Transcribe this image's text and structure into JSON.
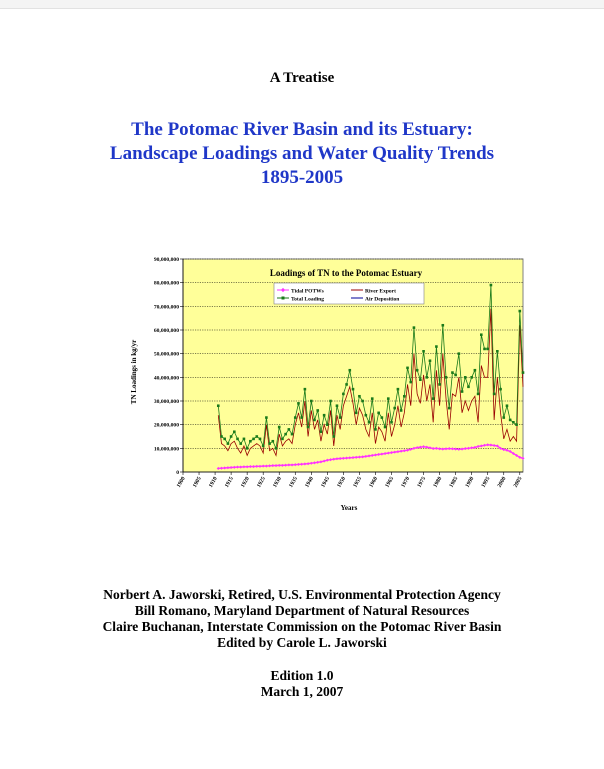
{
  "document": {
    "kicker": "A Treatise",
    "title_lines": [
      "The Potomac River Basin and its Estuary:",
      "Landscape Loadings and Water Quality Trends",
      "1895-2005"
    ],
    "author_lines": [
      "Norbert A. Jaworski, Retired, U.S. Environmental Protection Agency",
      "Bill Romano, Maryland Department of Natural Resources",
      "Claire Buchanan, Interstate Commission on the Potomac River Basin",
      "Edited by Carole L. Jaworski"
    ],
    "edition_lines": [
      "Edition 1.0",
      "March 1, 2007"
    ]
  },
  "chart_data": {
    "type": "line",
    "title": "Loadings of TN to the Potomac Estuary",
    "xlabel": "Years",
    "ylabel": "TN Loadings in kg/yr",
    "xlim": [
      1900,
      2006
    ],
    "ylim": [
      0,
      90000000
    ],
    "x_ticks": [
      1900,
      1905,
      1910,
      1915,
      1920,
      1925,
      1930,
      1935,
      1940,
      1945,
      1950,
      1955,
      1960,
      1965,
      1970,
      1975,
      1980,
      1985,
      1990,
      1995,
      2000,
      2005
    ],
    "y_ticks": [
      0,
      10000000,
      20000000,
      30000000,
      40000000,
      50000000,
      60000000,
      70000000,
      80000000,
      90000000
    ],
    "y_tick_labels": [
      "0",
      "10,000,000",
      "20,000,000",
      "30,000,000",
      "40,000,000",
      "50,000,000",
      "60,000,000",
      "70,000,000",
      "80,000,000",
      "90,000,000"
    ],
    "grid": true,
    "legend_position": "top",
    "plot_background": "#ffff99",
    "years": [
      1911,
      1912,
      1913,
      1914,
      1915,
      1916,
      1917,
      1918,
      1919,
      1920,
      1921,
      1922,
      1923,
      1924,
      1925,
      1926,
      1927,
      1928,
      1929,
      1930,
      1931,
      1932,
      1933,
      1934,
      1935,
      1936,
      1937,
      1938,
      1939,
      1940,
      1941,
      1942,
      1943,
      1944,
      1945,
      1946,
      1947,
      1948,
      1949,
      1950,
      1951,
      1952,
      1953,
      1954,
      1955,
      1956,
      1957,
      1958,
      1959,
      1960,
      1961,
      1962,
      1963,
      1964,
      1965,
      1966,
      1967,
      1968,
      1969,
      1970,
      1971,
      1972,
      1973,
      1974,
      1975,
      1976,
      1977,
      1978,
      1979,
      1980,
      1981,
      1982,
      1983,
      1984,
      1985,
      1986,
      1987,
      1988,
      1989,
      1990,
      1991,
      1992,
      1993,
      1994,
      1995,
      1996,
      1997,
      1998,
      1999,
      2000,
      2001,
      2002,
      2003,
      2004,
      2005,
      2006
    ],
    "series": [
      {
        "name": "Tidal POTWs",
        "color": "#ff33ff",
        "marker": "diamond",
        "values": [
          1500000,
          1600000,
          1700000,
          1800000,
          1900000,
          2000000,
          2100000,
          2100000,
          2200000,
          2200000,
          2300000,
          2300000,
          2400000,
          2400000,
          2500000,
          2500000,
          2600000,
          2700000,
          2700000,
          2800000,
          2800000,
          2900000,
          3000000,
          3000000,
          3100000,
          3200000,
          3300000,
          3400000,
          3500000,
          3700000,
          3900000,
          4100000,
          4300000,
          4600000,
          5000000,
          5200000,
          5400000,
          5600000,
          5700000,
          5800000,
          5900000,
          6000000,
          6100000,
          6200000,
          6300000,
          6400000,
          6600000,
          6800000,
          7000000,
          7200000,
          7400000,
          7600000,
          7800000,
          8000000,
          8200000,
          8400000,
          8600000,
          8800000,
          9000000,
          9200000,
          9600000,
          10000000,
          10300000,
          10500000,
          10700000,
          10500000,
          10200000,
          9900000,
          10000000,
          9800000,
          9700000,
          9800000,
          9900000,
          9800000,
          9700000,
          9600000,
          9700000,
          9900000,
          10000000,
          10200000,
          10400000,
          10800000,
          11000000,
          11300000,
          11500000,
          11400000,
          11200000,
          11000000,
          10000000,
          9500000,
          9200000,
          8700000,
          7800000,
          7000000,
          6200000,
          5800000
        ]
      },
      {
        "name": "River Export",
        "color": "#990000",
        "marker": "none",
        "values": [
          24000000,
          12000000,
          11000000,
          9000000,
          12000000,
          13000000,
          10000000,
          8000000,
          11000000,
          7000000,
          10000000,
          11000000,
          12000000,
          11000000,
          8000000,
          20000000,
          9000000,
          10000000,
          7000000,
          16000000,
          11000000,
          13000000,
          14000000,
          12000000,
          20000000,
          25000000,
          19000000,
          30000000,
          15000000,
          26000000,
          18000000,
          22000000,
          13000000,
          20000000,
          16000000,
          26000000,
          11000000,
          24000000,
          18000000,
          28000000,
          32000000,
          36000000,
          29000000,
          20000000,
          27000000,
          24000000,
          18000000,
          15000000,
          25000000,
          12000000,
          19000000,
          17000000,
          13000000,
          25000000,
          15000000,
          20000000,
          28000000,
          19000000,
          25000000,
          37000000,
          28000000,
          50000000,
          33000000,
          29000000,
          41000000,
          30000000,
          37000000,
          21000000,
          43000000,
          28000000,
          50000000,
          31000000,
          18000000,
          33000000,
          32000000,
          40000000,
          25000000,
          30000000,
          26000000,
          30000000,
          32000000,
          21000000,
          45000000,
          40000000,
          40000000,
          69000000,
          22000000,
          40000000,
          25000000,
          14000000,
          18000000,
          13000000,
          15000000,
          13000000,
          62000000,
          36000000
        ]
      },
      {
        "name": "Total Loading",
        "color": "#1a7a1a",
        "marker": "square",
        "values": [
          28000000,
          15000000,
          14000000,
          12000000,
          15000000,
          17000000,
          14000000,
          12000000,
          14000000,
          10000000,
          13000000,
          14000000,
          15000000,
          14000000,
          11000000,
          23000000,
          12000000,
          13000000,
          10000000,
          19000000,
          14000000,
          16000000,
          18000000,
          16000000,
          23000000,
          29000000,
          23000000,
          35000000,
          19000000,
          30000000,
          22000000,
          26000000,
          17000000,
          24000000,
          20000000,
          30000000,
          15000000,
          28000000,
          23000000,
          33000000,
          37000000,
          43000000,
          35000000,
          25000000,
          32000000,
          30000000,
          24000000,
          21000000,
          31000000,
          18000000,
          25000000,
          23000000,
          19000000,
          31000000,
          21000000,
          27000000,
          35000000,
          26000000,
          32000000,
          44000000,
          38000000,
          61000000,
          43000000,
          39000000,
          51000000,
          40000000,
          47000000,
          31000000,
          53000000,
          37000000,
          62000000,
          40000000,
          27000000,
          42000000,
          41000000,
          50000000,
          34000000,
          40000000,
          36000000,
          40000000,
          43000000,
          33000000,
          58000000,
          52000000,
          52000000,
          79000000,
          33000000,
          51000000,
          35000000,
          23000000,
          28000000,
          22000000,
          21000000,
          20000000,
          68000000,
          42000000
        ]
      },
      {
        "name": "Air Deposition",
        "color": "#000099",
        "marker": "none",
        "values": []
      }
    ]
  }
}
